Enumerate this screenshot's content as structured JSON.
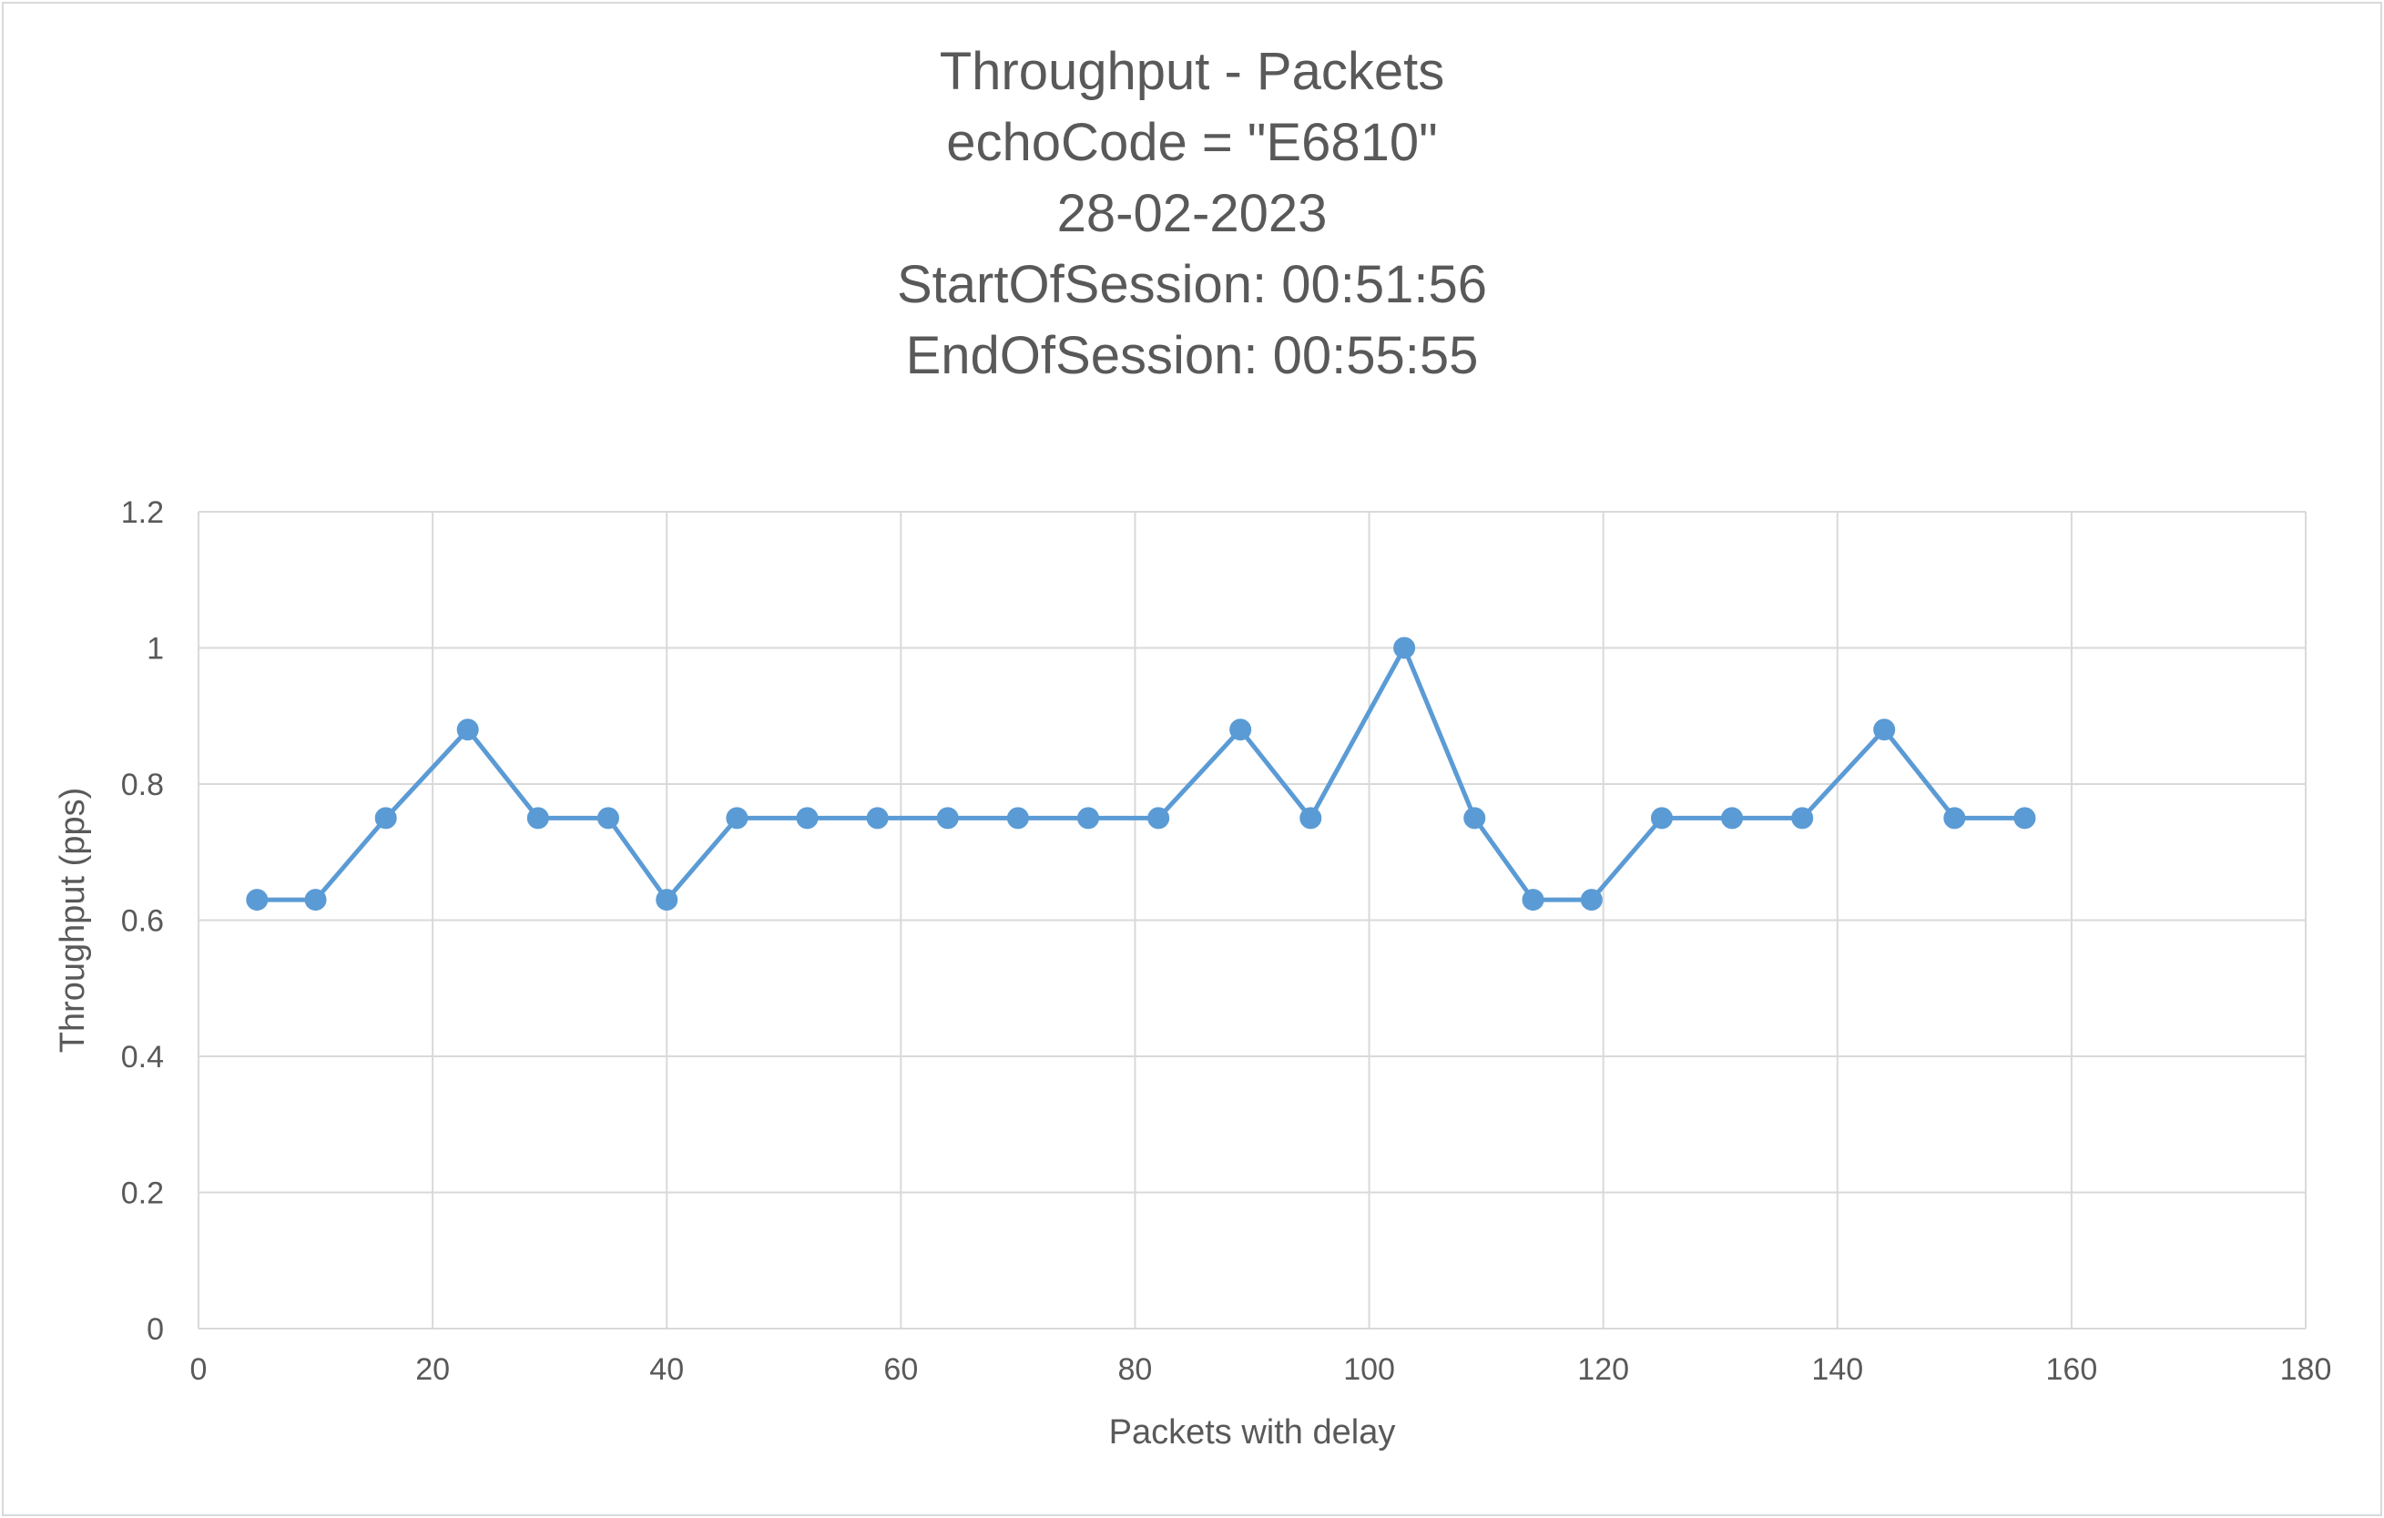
{
  "chart_data": {
    "type": "line",
    "title_lines": [
      "Throughput - Packets",
      "echoCode = \"E6810\"",
      "28-02-2023",
      "StartOfSession: 00:51:56",
      "EndOfSession: 00:55:55"
    ],
    "xlabel": "Packets with delay",
    "ylabel": "Throughput (pps)",
    "xlim": [
      0,
      180
    ],
    "ylim": [
      0,
      1.2
    ],
    "x_ticks": [
      "0",
      "20",
      "40",
      "60",
      "80",
      "100",
      "120",
      "140",
      "160",
      "180"
    ],
    "y_ticks": [
      "0",
      "0.2",
      "0.4",
      "0.6",
      "0.8",
      "1",
      "1.2"
    ],
    "grid": true,
    "legend": "none",
    "series": [
      {
        "color": "#5b9bd5",
        "marker": "circle",
        "points": [
          {
            "x": 5,
            "y": 0.63
          },
          {
            "x": 10,
            "y": 0.63
          },
          {
            "x": 16,
            "y": 0.75
          },
          {
            "x": 23,
            "y": 0.88
          },
          {
            "x": 29,
            "y": 0.75
          },
          {
            "x": 35,
            "y": 0.75
          },
          {
            "x": 40,
            "y": 0.63
          },
          {
            "x": 46,
            "y": 0.75
          },
          {
            "x": 52,
            "y": 0.75
          },
          {
            "x": 58,
            "y": 0.75
          },
          {
            "x": 64,
            "y": 0.75
          },
          {
            "x": 70,
            "y": 0.75
          },
          {
            "x": 76,
            "y": 0.75
          },
          {
            "x": 82,
            "y": 0.75
          },
          {
            "x": 89,
            "y": 0.88
          },
          {
            "x": 95,
            "y": 0.75
          },
          {
            "x": 103,
            "y": 1.0
          },
          {
            "x": 109,
            "y": 0.75
          },
          {
            "x": 114,
            "y": 0.63
          },
          {
            "x": 119,
            "y": 0.63
          },
          {
            "x": 125,
            "y": 0.75
          },
          {
            "x": 131,
            "y": 0.75
          },
          {
            "x": 137,
            "y": 0.75
          },
          {
            "x": 144,
            "y": 0.88
          },
          {
            "x": 150,
            "y": 0.75
          },
          {
            "x": 156,
            "y": 0.75
          }
        ]
      }
    ]
  }
}
